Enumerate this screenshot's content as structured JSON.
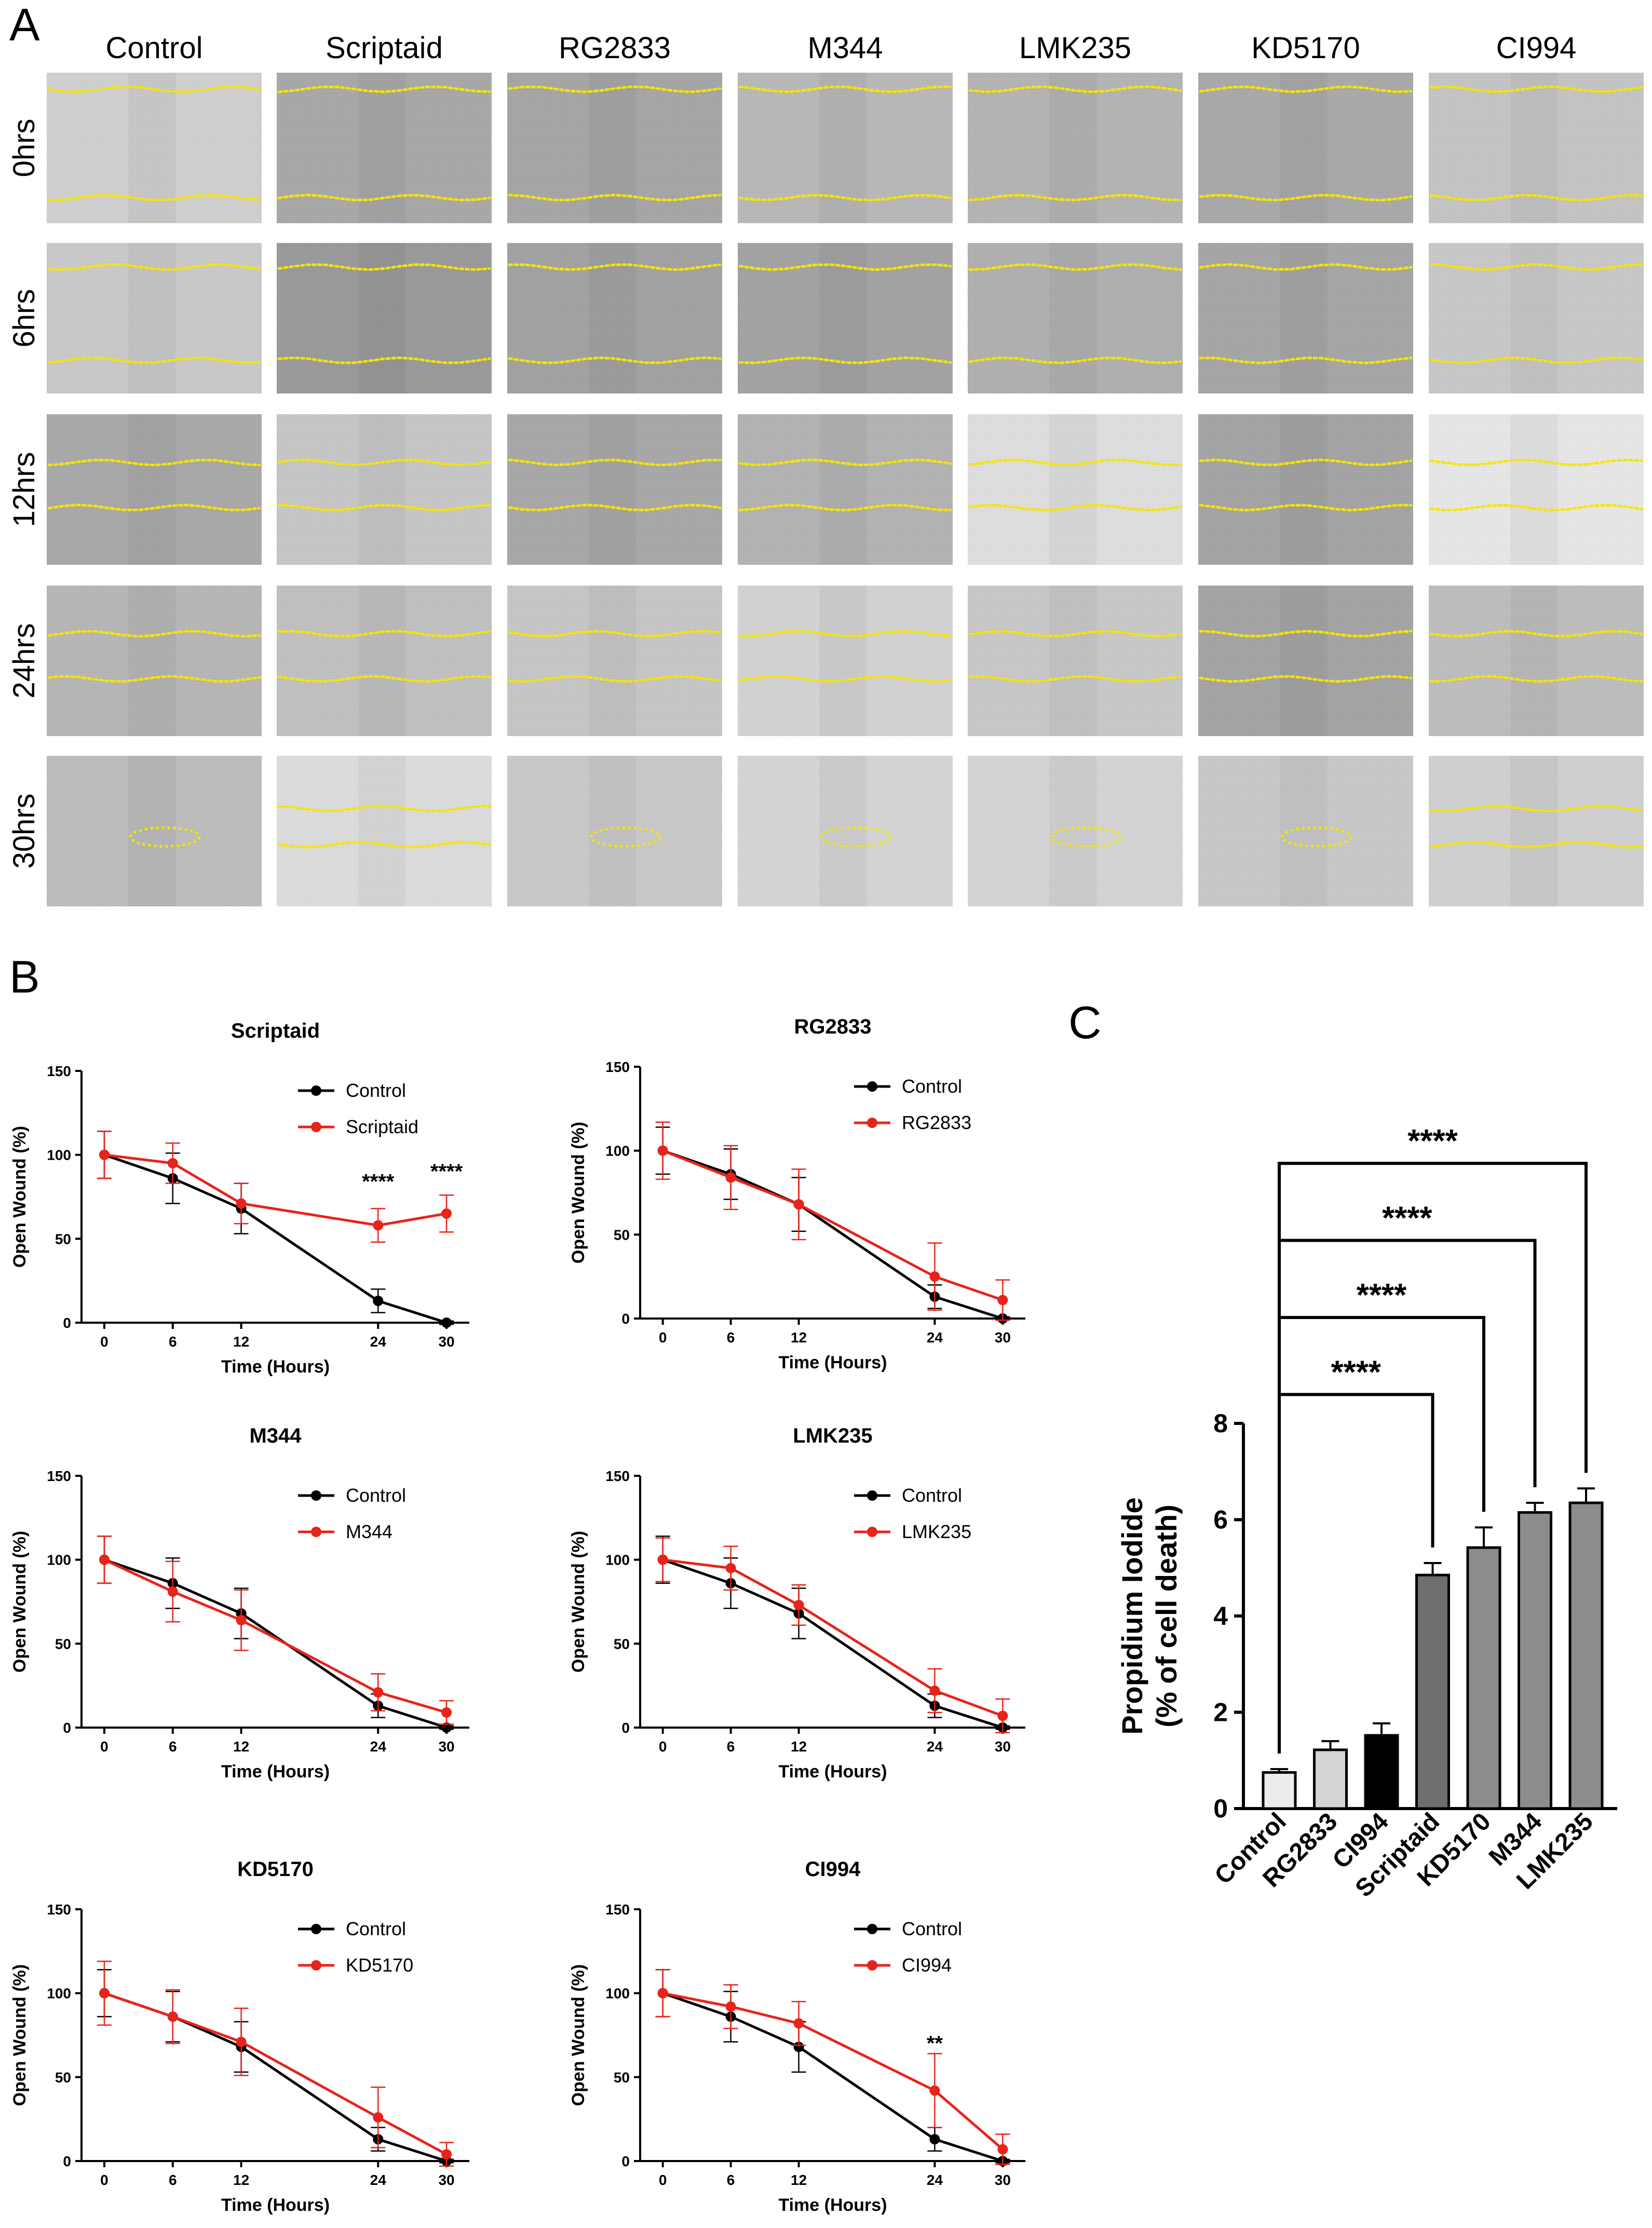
{
  "panel_labels": {
    "a": "A",
    "b": "B",
    "c": "C"
  },
  "panel_a": {
    "columns": [
      "Control",
      "Scriptaid",
      "RG2833",
      "M344",
      "LMK235",
      "KD5170",
      "CI994"
    ],
    "rows": [
      "0hrs",
      "6hrs",
      "12hrs",
      "24hrs",
      "30hrs"
    ],
    "tile_shade": [
      [
        "#cfcfcf",
        "#a8a8a8",
        "#a6a6a6",
        "#b8b8b8",
        "#b4b4b4",
        "#a9a9a9",
        "#c4c4c4"
      ],
      [
        "#c9c9c9",
        "#9a9a9a",
        "#a2a2a2",
        "#a3a3a3",
        "#b0b0b0",
        "#a6a6a6",
        "#c8c8c8"
      ],
      [
        "#a9a9a9",
        "#c6c6c6",
        "#a8a8a8",
        "#b3b3b3",
        "#dedede",
        "#a4a4a4",
        "#e6e6e6"
      ],
      [
        "#b6b6b6",
        "#c0c0c0",
        "#c6c6c6",
        "#d2d2d2",
        "#c8c8c8",
        "#a4a4a4",
        "#bdbdbd"
      ],
      [
        "#bcbcbc",
        "#dcdcdc",
        "#c9c9c9",
        "#d4d4d4",
        "#d4d4d4",
        "#c8c8c8",
        "#d0d0d0"
      ]
    ],
    "wound_color": "#f5e500"
  },
  "colors": {
    "control": "#000000",
    "treatment": "#e8231b"
  },
  "chart_data": [
    {
      "type": "line",
      "title": "Scriptaid",
      "xlabel": "Time (Hours)",
      "ylabel": "Open Wound (%)",
      "x": [
        0,
        6,
        12,
        24,
        30
      ],
      "ylim": [
        0,
        150
      ],
      "yticks": [
        0,
        50,
        100,
        150
      ],
      "series": [
        {
          "name": "Control",
          "values": [
            100,
            86,
            68,
            13,
            0
          ],
          "err": [
            14,
            15,
            15,
            7,
            1
          ]
        },
        {
          "name": "Scriptaid",
          "values": [
            100,
            95,
            71,
            58,
            65
          ],
          "err": [
            14,
            12,
            12,
            10,
            11
          ]
        }
      ],
      "annotations": [
        {
          "x": 24,
          "y": 80,
          "text": "****"
        },
        {
          "x": 30,
          "y": 86,
          "text": "****"
        }
      ]
    },
    {
      "type": "line",
      "title": "RG2833",
      "xlabel": "Time (Hours)",
      "ylabel": "Open Wound (%)",
      "x": [
        0,
        6,
        12,
        24,
        30
      ],
      "ylim": [
        0,
        150
      ],
      "yticks": [
        0,
        50,
        100,
        150
      ],
      "series": [
        {
          "name": "Control",
          "values": [
            100,
            86,
            68,
            13,
            0
          ],
          "err": [
            14,
            15,
            16,
            7,
            1
          ]
        },
        {
          "name": "RG2833",
          "values": [
            100,
            84,
            68,
            25,
            11
          ],
          "err": [
            17,
            19,
            21,
            20,
            12
          ]
        }
      ],
      "annotations": []
    },
    {
      "type": "line",
      "title": "M344",
      "xlabel": "Time (Hours)",
      "ylabel": "Open Wound (%)",
      "x": [
        0,
        6,
        12,
        24,
        30
      ],
      "ylim": [
        0,
        150
      ],
      "yticks": [
        0,
        50,
        100,
        150
      ],
      "series": [
        {
          "name": "Control",
          "values": [
            100,
            86,
            68,
            13,
            0
          ],
          "err": [
            14,
            15,
            15,
            7,
            1
          ]
        },
        {
          "name": "M344",
          "values": [
            100,
            81,
            64,
            21,
            9
          ],
          "err": [
            14,
            18,
            18,
            11,
            7
          ]
        }
      ],
      "annotations": []
    },
    {
      "type": "line",
      "title": "LMK235",
      "xlabel": "Time (Hours)",
      "ylabel": "Open Wound (%)",
      "x": [
        0,
        6,
        12,
        24,
        30
      ],
      "ylim": [
        0,
        150
      ],
      "yticks": [
        0,
        50,
        100,
        150
      ],
      "series": [
        {
          "name": "Control",
          "values": [
            100,
            86,
            68,
            13,
            0
          ],
          "err": [
            14,
            15,
            15,
            7,
            1
          ]
        },
        {
          "name": "LMK235",
          "values": [
            100,
            95,
            73,
            22,
            7
          ],
          "err": [
            13,
            13,
            12,
            13,
            10
          ]
        }
      ],
      "annotations": []
    },
    {
      "type": "line",
      "title": "KD5170",
      "xlabel": "Time (Hours)",
      "ylabel": "Open Wound (%)",
      "x": [
        0,
        6,
        12,
        24,
        30
      ],
      "ylim": [
        0,
        150
      ],
      "yticks": [
        0,
        50,
        100,
        150
      ],
      "series": [
        {
          "name": "Control",
          "values": [
            100,
            86,
            68,
            13,
            0
          ],
          "err": [
            14,
            15,
            15,
            7,
            1
          ]
        },
        {
          "name": "KD5170",
          "values": [
            100,
            86,
            71,
            26,
            4
          ],
          "err": [
            19,
            16,
            20,
            18,
            7
          ]
        }
      ],
      "annotations": []
    },
    {
      "type": "line",
      "title": "CI994",
      "xlabel": "Time (Hours)",
      "ylabel": "Open Wound (%)",
      "x": [
        0,
        6,
        12,
        24,
        30
      ],
      "ylim": [
        0,
        150
      ],
      "yticks": [
        0,
        50,
        100,
        150
      ],
      "series": [
        {
          "name": "Control",
          "values": [
            100,
            86,
            68,
            13,
            0
          ],
          "err": [
            14,
            15,
            15,
            7,
            1
          ]
        },
        {
          "name": "CI994",
          "values": [
            100,
            92,
            82,
            42,
            7
          ],
          "err": [
            14,
            13,
            13,
            22,
            9
          ]
        }
      ],
      "annotations": [
        {
          "x": 24,
          "y": 66,
          "text": "**"
        }
      ]
    },
    {
      "type": "bar",
      "title": "",
      "xlabel": "",
      "ylabel": [
        "Propidium Iodide",
        "(% of cell death)"
      ],
      "categories": [
        "Control",
        "RG2833",
        "CI994",
        "Scriptaid",
        "KD5170",
        "M344",
        "LMK235"
      ],
      "values": [
        0.75,
        1.22,
        1.52,
        4.85,
        5.42,
        6.15,
        6.35
      ],
      "err": [
        0.07,
        0.18,
        0.25,
        0.25,
        0.42,
        0.2,
        0.3
      ],
      "bar_colors": [
        "#ececec",
        "#d4d4d4",
        "#000000",
        "#6e6e6e",
        "#8c8c8c",
        "#8c8c8c",
        "#8c8c8c"
      ],
      "ylim": [
        0,
        8
      ],
      "yticks": [
        0,
        2,
        4,
        6,
        8
      ],
      "comparisons": [
        {
          "from": "Control",
          "to": "Scriptaid",
          "label": "****",
          "level": 8.6
        },
        {
          "from": "Control",
          "to": "KD5170",
          "label": "****",
          "level": 10.2
        },
        {
          "from": "Control",
          "to": "M344",
          "label": "****",
          "level": 11.8
        },
        {
          "from": "Control",
          "to": "LMK235",
          "label": "****",
          "level": 13.4
        }
      ]
    }
  ]
}
